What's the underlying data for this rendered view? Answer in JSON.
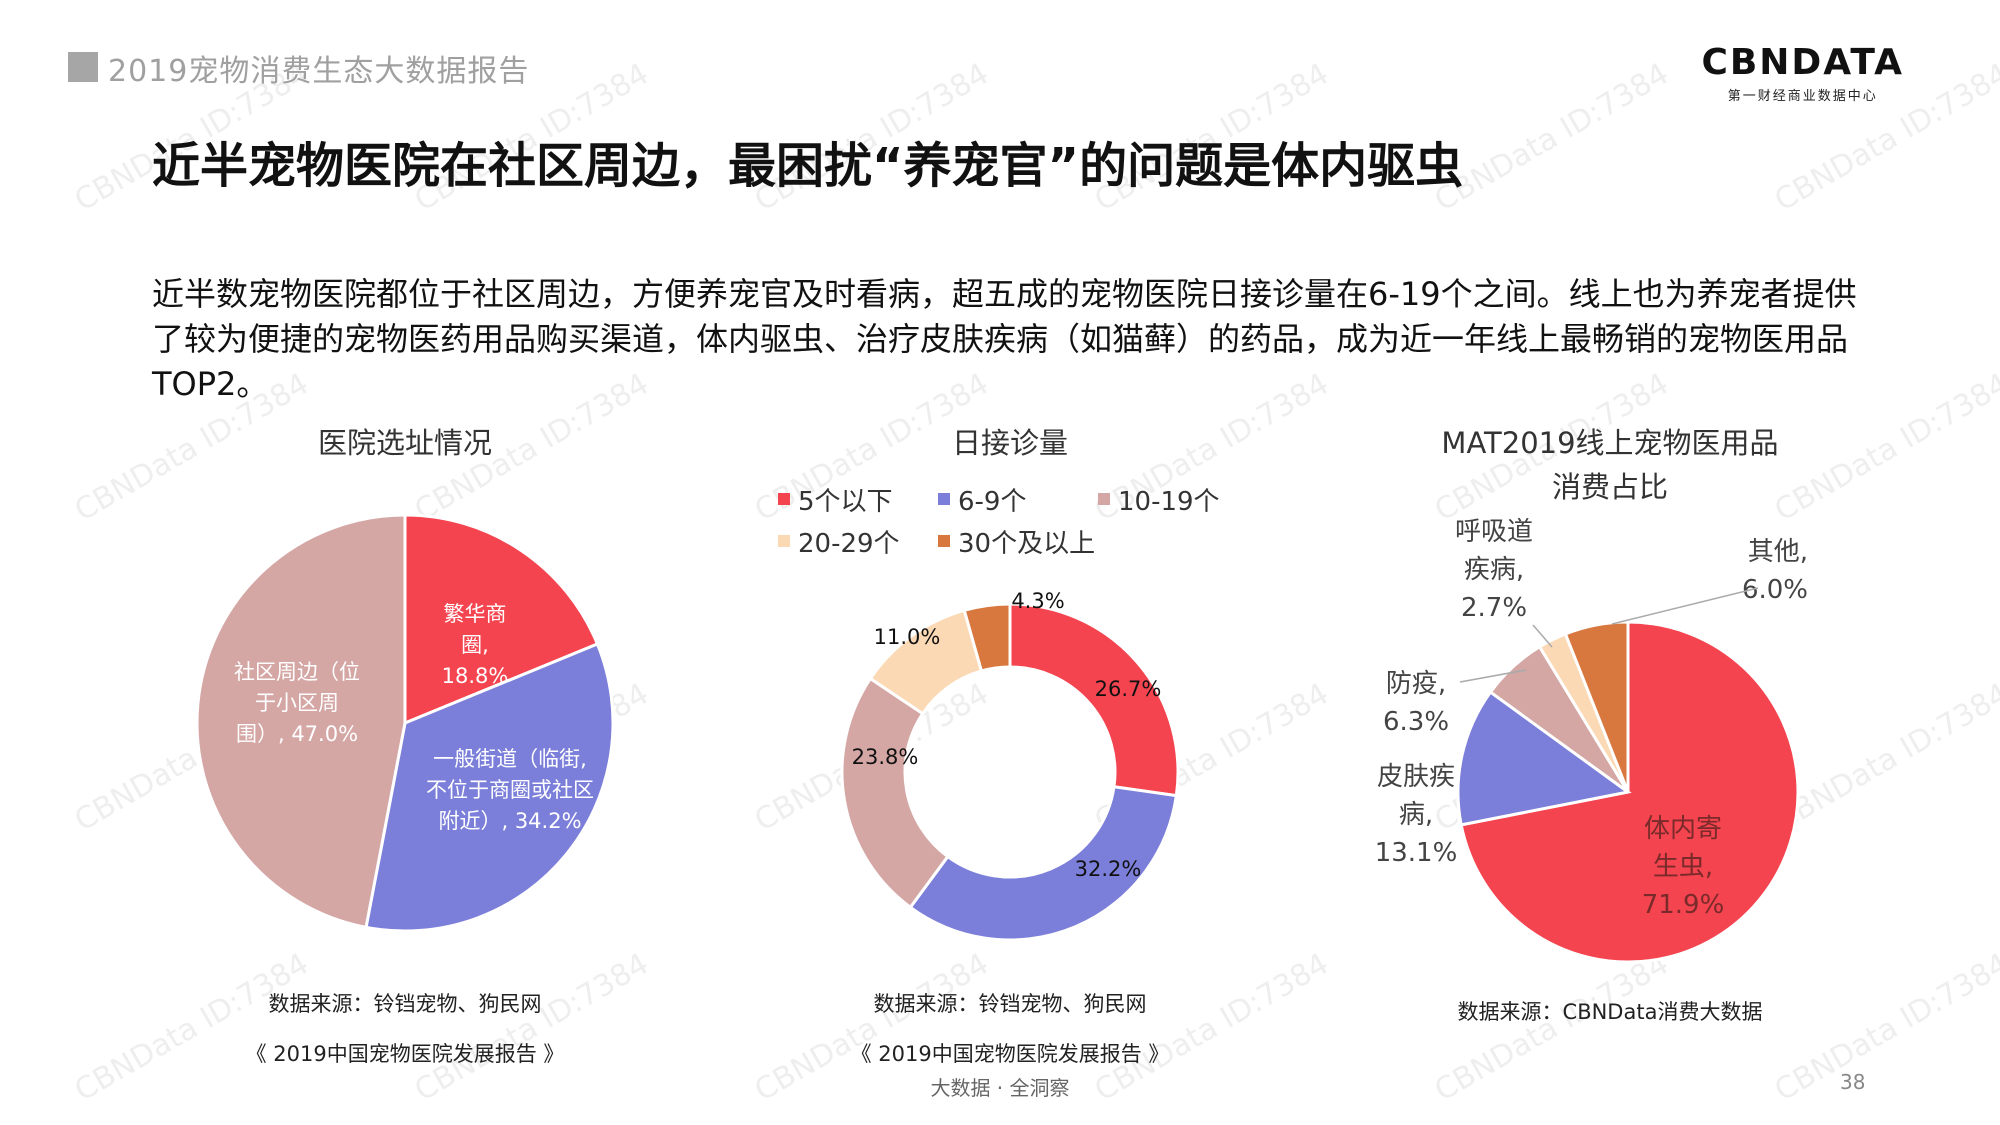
{
  "header": {
    "report_title": "2019宠物消费生态大数据报告"
  },
  "logo": {
    "main": "CBNDATA",
    "sub": "第一财经商业数据中心"
  },
  "title": "近半宠物医院在社区周边，最困扰“养宠官”的问题是体内驱虫",
  "intro": "近半数宠物医院都位于社区周边，方便养宠官及时看病，超五成的宠物医院日接诊量在6-19个之间。线上也为养宠者提供了较为便捷的宠物医药用品购买渠道，体内驱虫、治疗皮肤疾病（如猫藓）的药品，成为近一年线上最畅销的宠物医用品TOP2。",
  "charts": {
    "location": {
      "source_line1": "数据来源：铃铛宠物、狗民网",
      "source_line2": "《 2019中国宠物医院发展报告 》"
    },
    "daily": {
      "source_line1": "数据来源：铃铛宠物、狗民网",
      "source_line2": "《 2019中国宠物医院发展报告 》"
    },
    "online": {
      "title_line2": "消费占比",
      "source": "数据来源：CBNData消费大数据"
    }
  },
  "chart_data": [
    {
      "type": "pie",
      "title": "医院选址情况",
      "slices": [
        {
          "label_lines": [
            "繁华商",
            "圈,",
            "18.8%"
          ],
          "value": 18.8,
          "color": "#f4444f"
        },
        {
          "label_lines": [
            "一般街道（临街,",
            "不位于商圈或社区",
            "附近）, 34.2%"
          ],
          "value": 34.2,
          "color": "#7b7fd9"
        },
        {
          "label_lines": [
            "社区周边（位",
            "于小区周",
            "围）, 47.0%"
          ],
          "value": 47.0,
          "color": "#d4a7a5"
        }
      ]
    },
    {
      "type": "pie",
      "subtype": "donut",
      "title": "日接诊量",
      "series": [
        {
          "name": "5个以下",
          "value": 26.7,
          "label": "26.7%",
          "color": "#f4444f"
        },
        {
          "name": "6-9个",
          "value": 32.2,
          "label": "32.2%",
          "color": "#7b7fd9"
        },
        {
          "name": "10-19个",
          "value": 23.8,
          "label": "23.8%",
          "color": "#d4a7a5"
        },
        {
          "name": "20-29个",
          "value": 11.0,
          "label": "11.0%",
          "color": "#fbd9b4"
        },
        {
          "name": "30个及以上",
          "value": 4.3,
          "label": "4.3%",
          "color": "#d8783f"
        }
      ]
    },
    {
      "type": "pie",
      "title": "MAT2019线上宠物医用品",
      "slices": [
        {
          "label_lines": [
            "体内寄",
            "生虫,",
            "71.9%"
          ],
          "value": 71.9,
          "color": "#f4444f"
        },
        {
          "label_lines": [
            "皮肤疾",
            "病,",
            "13.1%"
          ],
          "value": 13.1,
          "color": "#7b7fd9"
        },
        {
          "label_lines": [
            "防疫,",
            "6.3%"
          ],
          "value": 6.3,
          "color": "#d4a7a5"
        },
        {
          "label_lines": [
            "呼吸道",
            "疾病,",
            "2.7%"
          ],
          "value": 2.7,
          "color": "#fbd9b4"
        },
        {
          "label_lines": [
            "其他,",
            "6.0%"
          ],
          "value": 6.0,
          "color": "#d8783f"
        }
      ]
    }
  ],
  "footer": {
    "tagline": "大数据 · 全洞察",
    "page": "38"
  },
  "watermark": "CBNData ID:7384"
}
